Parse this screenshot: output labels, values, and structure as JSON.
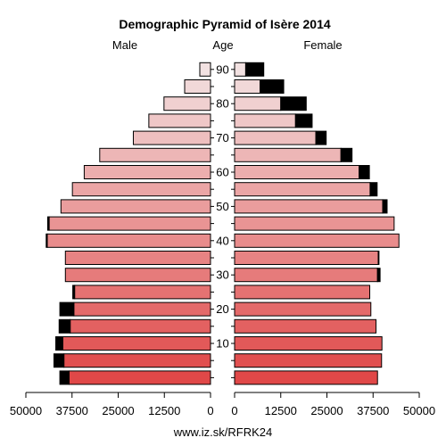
{
  "chart_data": {
    "type": "bar",
    "title": "Demographic Pyramid of Isère 2014",
    "left_label": "Male",
    "center_label": "Age",
    "right_label": "Female",
    "footer": "www.iz.sk/RFRK24",
    "xlim": [
      0,
      50000
    ],
    "x_ticks": [
      50000,
      37500,
      25000,
      12500,
      0
    ],
    "x_tick_labels_male": [
      "50000",
      "37500",
      "25000",
      "12500",
      "0"
    ],
    "x_tick_labels_female": [
      "0",
      "12500",
      "25000",
      "37500",
      "50000"
    ],
    "age_ticks": [
      10,
      20,
      30,
      40,
      50,
      60,
      70,
      80,
      90
    ],
    "age_groups": [
      "0-4",
      "5-9",
      "10-14",
      "15-19",
      "20-24",
      "25-29",
      "30-34",
      "35-39",
      "40-44",
      "45-49",
      "50-54",
      "55-59",
      "60-64",
      "65-69",
      "70-74",
      "75-79",
      "80-84",
      "85-89",
      "90+"
    ],
    "series": [
      {
        "name": "Male",
        "values": [
          38300,
          39700,
          40000,
          38000,
          37000,
          36800,
          39300,
          39300,
          44200,
          43700,
          40500,
          37400,
          34200,
          30000,
          20900,
          16700,
          12600,
          7000,
          2900
        ],
        "excess": [
          2500,
          2700,
          1900,
          3000,
          3800,
          500,
          0,
          0,
          300,
          400,
          0,
          0,
          0,
          0,
          0,
          0,
          0,
          0,
          0
        ]
      },
      {
        "name": "Female",
        "values": [
          38700,
          39800,
          39900,
          38300,
          36900,
          36600,
          38700,
          38900,
          44500,
          43200,
          40100,
          36700,
          33700,
          28800,
          22000,
          16500,
          12500,
          6900,
          3000
        ],
        "excess": [
          0,
          0,
          0,
          0,
          0,
          0,
          700,
          200,
          0,
          0,
          1200,
          1900,
          2800,
          3000,
          2800,
          4500,
          6900,
          6400,
          4900
        ]
      }
    ],
    "colors": {
      "young": "#e04848",
      "old": "#f4eeee",
      "excess": "#000000",
      "outline": "#000000"
    }
  }
}
